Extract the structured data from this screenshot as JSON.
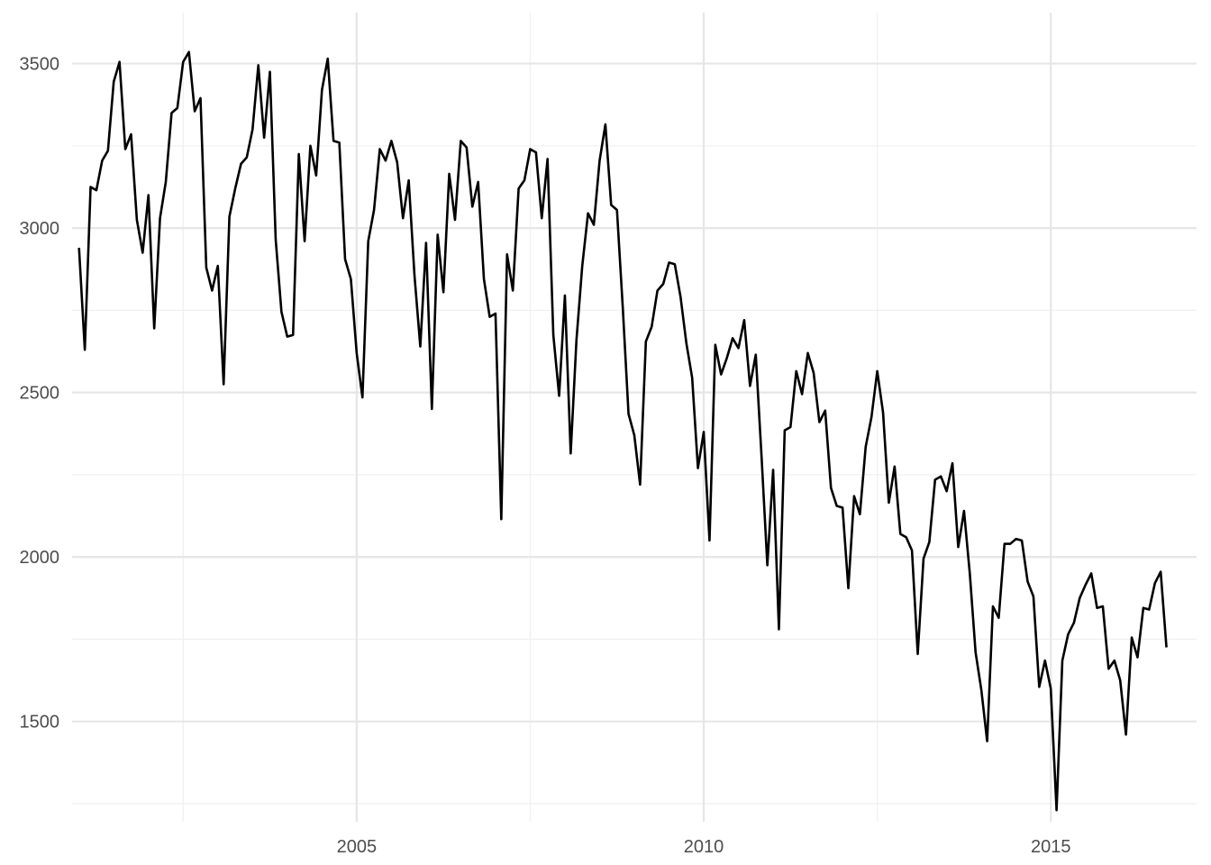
{
  "chart_data": {
    "type": "line",
    "title": "",
    "xlabel": "",
    "ylabel": "",
    "grid": true,
    "xlim": [
      2000.9,
      2017.1
    ],
    "ylim": [
      1195,
      3655
    ],
    "x_ticks": [
      2005,
      2010,
      2015
    ],
    "x_tick_labels": [
      "2005",
      "2010",
      "2015"
    ],
    "x_minor_ticks": [
      2002.5,
      2007.5,
      2012.5
    ],
    "y_ticks": [
      1500,
      2000,
      2500,
      3000,
      3500
    ],
    "y_tick_labels": [
      "1500",
      "2000",
      "2500",
      "3000",
      "3500"
    ],
    "y_minor_ticks": [
      1250,
      1750,
      2250,
      2750,
      3250
    ],
    "line_color": "#000000",
    "series": [
      {
        "x_start": 2001.0,
        "x_step": 0.08333,
        "values": [
          2940,
          2630,
          3125,
          3115,
          3205,
          3235,
          3445,
          3505,
          3240,
          3285,
          3025,
          2925,
          3100,
          2695,
          3030,
          3140,
          3350,
          3365,
          3505,
          3535,
          3355,
          3395,
          2880,
          2810,
          2885,
          2525,
          3035,
          3120,
          3195,
          3215,
          3300,
          3495,
          3275,
          3475,
          2965,
          2745,
          2670,
          2675,
          3225,
          2960,
          3250,
          3160,
          3420,
          3515,
          3265,
          3260,
          2905,
          2845,
          2620,
          2485,
          2960,
          3055,
          3240,
          3205,
          3265,
          3200,
          3030,
          3145,
          2855,
          2640,
          2955,
          2450,
          2980,
          2805,
          3165,
          3025,
          3265,
          3245,
          3065,
          3140,
          2845,
          2730,
          2740,
          2115,
          2920,
          2810,
          3120,
          3145,
          3240,
          3230,
          3030,
          3210,
          2675,
          2490,
          2795,
          2315,
          2660,
          2885,
          3045,
          3010,
          3205,
          3315,
          3070,
          3055,
          2760,
          2435,
          2370,
          2220,
          2655,
          2700,
          2810,
          2830,
          2895,
          2890,
          2790,
          2650,
          2545,
          2270,
          2380,
          2050,
          2645,
          2555,
          2605,
          2665,
          2635,
          2720,
          2520,
          2615,
          2305,
          1975,
          2265,
          1780,
          2385,
          2395,
          2565,
          2495,
          2620,
          2560,
          2410,
          2445,
          2210,
          2155,
          2150,
          1905,
          2185,
          2130,
          2335,
          2425,
          2565,
          2440,
          2165,
          2275,
          2070,
          2060,
          2020,
          1705,
          1995,
          2045,
          2235,
          2245,
          2200,
          2285,
          2030,
          2140,
          1950,
          1710,
          1595,
          1440,
          1850,
          1815,
          2040,
          2040,
          2055,
          2050,
          1925,
          1880,
          1605,
          1685,
          1600,
          1230,
          1685,
          1765,
          1800,
          1875,
          1915,
          1950,
          1845,
          1850,
          1660,
          1685,
          1625,
          1460,
          1755,
          1695,
          1845,
          1840,
          1920,
          1955,
          1725
        ]
      }
    ]
  }
}
